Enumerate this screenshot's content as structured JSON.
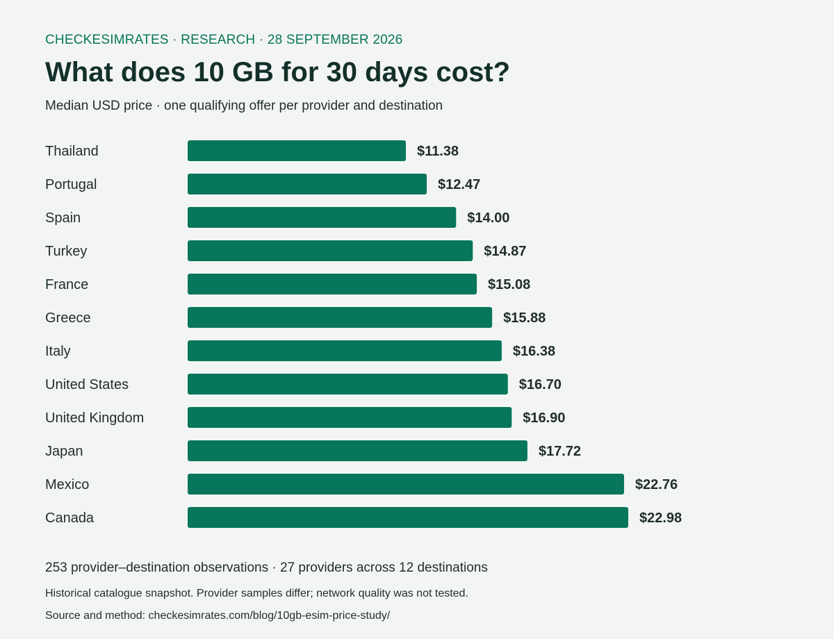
{
  "header": {
    "kicker": "CHECKESIMRATES · RESEARCH · 28 SEPTEMBER 2026",
    "title": "What does 10 GB for 30 days cost?",
    "subtitle": "Median USD price · one qualifying offer per provider and destination"
  },
  "chart_data": {
    "type": "bar",
    "orientation": "horizontal",
    "categories": [
      "Thailand",
      "Portugal",
      "Spain",
      "Turkey",
      "France",
      "Greece",
      "Italy",
      "United States",
      "United Kingdom",
      "Japan",
      "Mexico",
      "Canada"
    ],
    "values": [
      11.38,
      12.47,
      14.0,
      14.87,
      15.08,
      15.88,
      16.38,
      16.7,
      16.9,
      17.72,
      22.76,
      22.98
    ],
    "value_labels": [
      "$11.38",
      "$12.47",
      "$14.00",
      "$14.87",
      "$15.08",
      "$15.88",
      "$16.38",
      "$16.70",
      "$16.90",
      "$17.72",
      "$22.76",
      "$22.98"
    ],
    "xlim": [
      0,
      22.98
    ],
    "grid": false,
    "bar_color": "#08765a"
  },
  "footer": {
    "observations": "253 provider–destination observations · 27 providers across 12 destinations",
    "note": "Historical catalogue snapshot. Provider samples differ; network quality was not tested.",
    "source": "Source and method: checkesimrates.com/blog/10gb-esim-price-study/"
  }
}
